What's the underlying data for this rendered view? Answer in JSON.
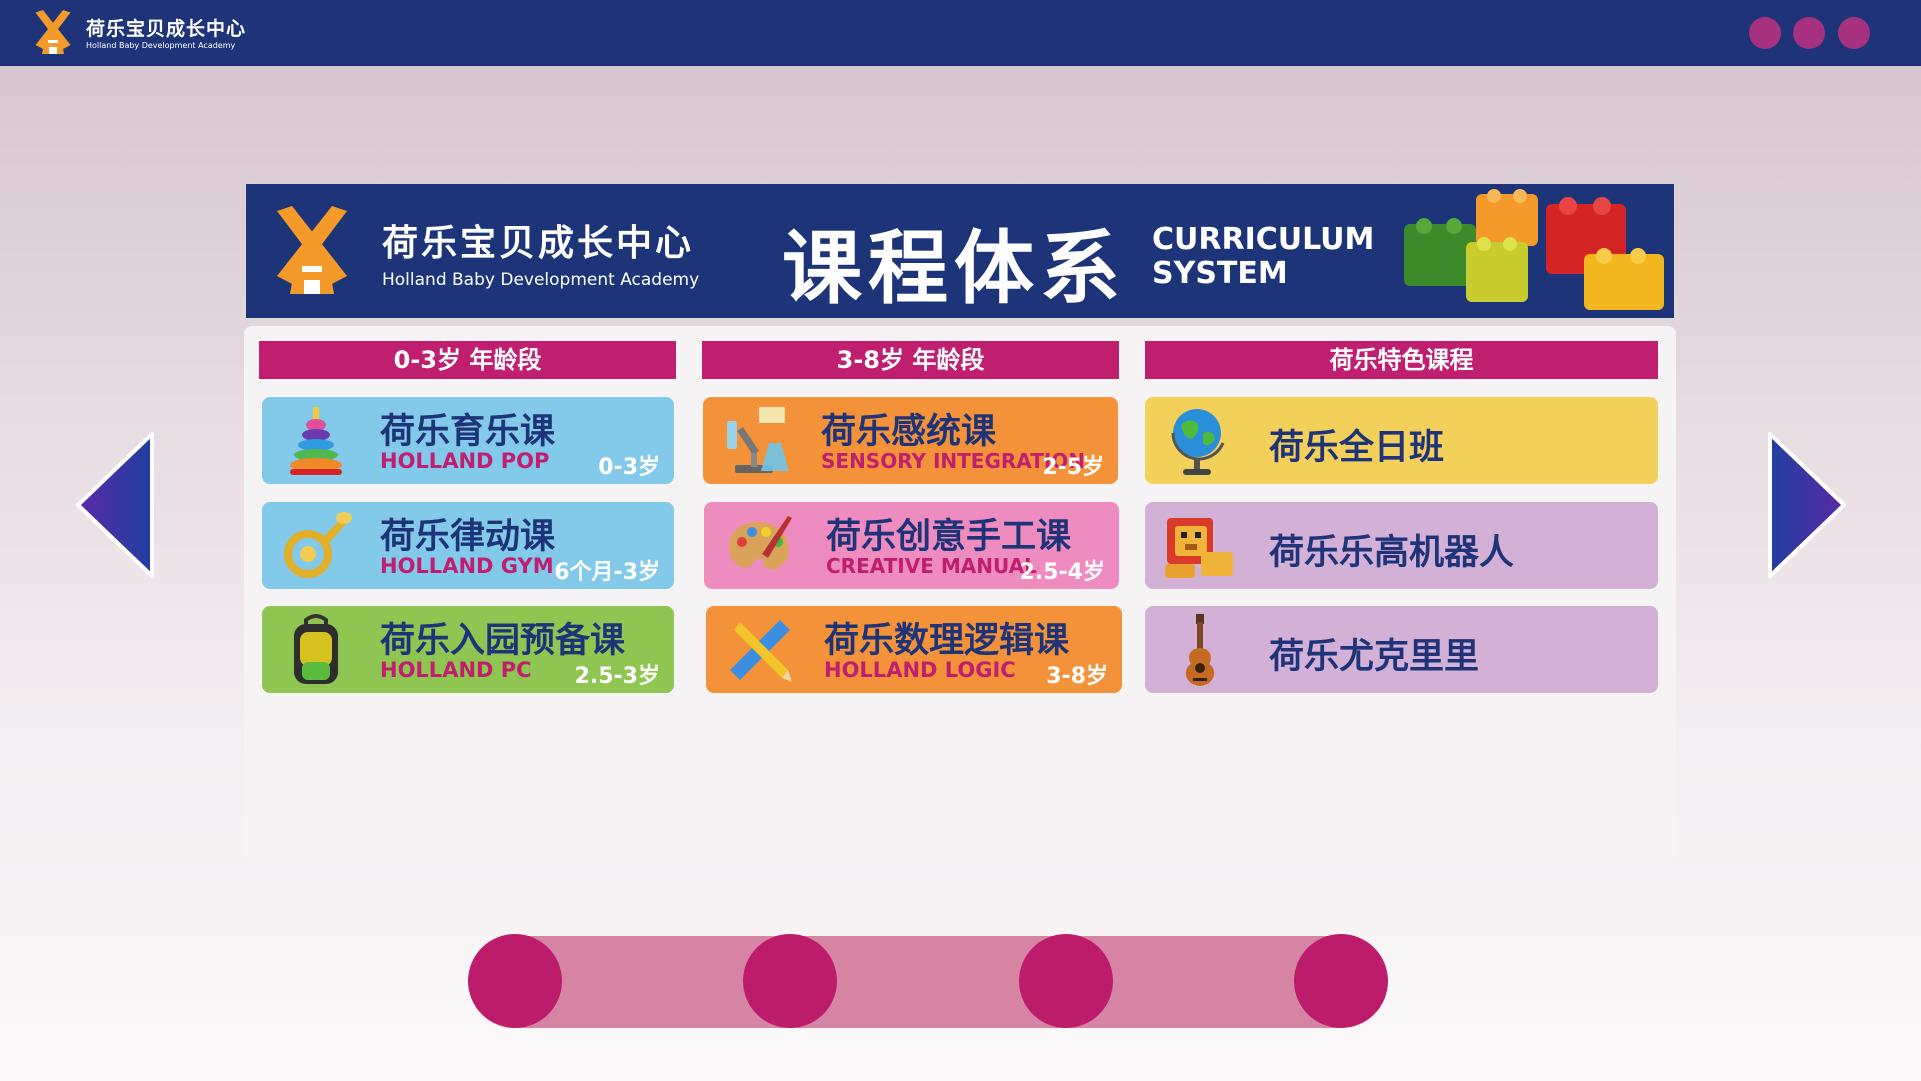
{
  "header": {
    "logo_icon": "windmill-icon",
    "title": "荷乐宝贝成长中心",
    "subtitle": "Holland Baby Development Academy",
    "window_controls": [
      "circle-button",
      "circle-button",
      "circle-button"
    ]
  },
  "banner": {
    "title": "荷乐宝贝成长中心",
    "subtitle": "Holland Baby Development Academy",
    "heading_cn": "课程体系",
    "heading_en_line1": "CURRICULUM",
    "heading_en_line2": "SYSTEM"
  },
  "columns": [
    {
      "header": "0-3岁  年龄段",
      "courses": [
        {
          "name": "荷乐育乐课",
          "english": "HOLLAND POP",
          "age": "0-3岁",
          "color": "#83c9ea",
          "icon": "stacking-rings-icon"
        },
        {
          "name": "荷乐律动课",
          "english": "HOLLAND GYM",
          "age": "6个月-3岁",
          "color": "#83c9ea",
          "icon": "horn-icon"
        },
        {
          "name": "荷乐入园预备课",
          "english": "HOLLAND PC",
          "age": "2.5-3岁",
          "color": "#8ec651",
          "icon": "backpack-icon"
        }
      ]
    },
    {
      "header": "3-8岁  年龄段",
      "courses": [
        {
          "name": "荷乐感统课",
          "english": "SENSORY INTEGRATION",
          "age": "2-5岁",
          "color": "#f4923a",
          "icon": "microscope-icon"
        },
        {
          "name": "荷乐创意手工课",
          "english": "CREATIVE MANUAL",
          "age": "2.5-4岁",
          "color": "#ee8bbf",
          "icon": "palette-icon"
        },
        {
          "name": "荷乐数理逻辑课",
          "english": "HOLLAND LOGIC",
          "age": "3-8岁",
          "color": "#f4923a",
          "icon": "ruler-pencil-icon"
        }
      ]
    },
    {
      "header": "荷乐特色课程",
      "courses": [
        {
          "name": "荷乐全日班",
          "color": "#f3d05a",
          "icon": "globe-icon"
        },
        {
          "name": "荷乐乐高机器人",
          "color": "#d3b0d6",
          "icon": "lego-lion-icon"
        },
        {
          "name": "荷乐尤克里里",
          "color": "#d3b0d6",
          "icon": "ukulele-icon"
        }
      ]
    }
  ],
  "navigation": {
    "prev_icon": "arrow-left-icon",
    "next_icon": "arrow-right-icon"
  },
  "pagination": {
    "pages": 4,
    "colors": {
      "dot": "#bc1c6a",
      "track": "#d584a3"
    }
  },
  "colors": {
    "navy": "#1f3478",
    "magenta": "#c01f6f",
    "accent_purple": "#a6317f"
  }
}
